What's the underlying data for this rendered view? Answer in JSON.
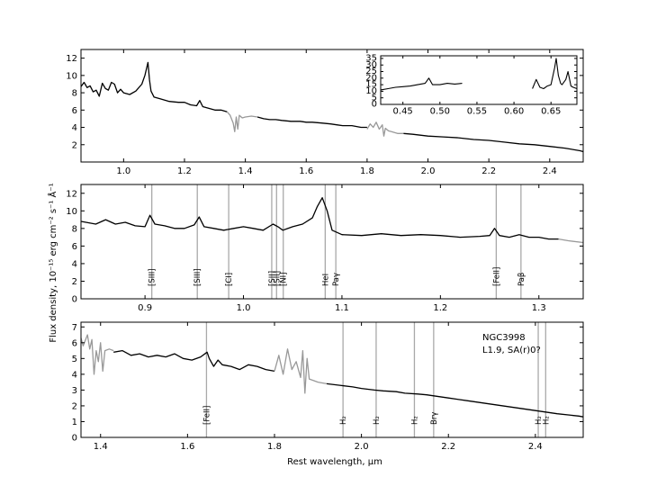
{
  "chart_data": [
    {
      "type": "line",
      "xlim": [
        0.86,
        2.51
      ],
      "ylim": [
        0,
        13
      ],
      "xticks": [
        1.0,
        1.2,
        1.4,
        1.6,
        1.8,
        2.0,
        2.2,
        2.4
      ],
      "yticks": [
        2,
        4,
        6,
        8,
        10,
        12
      ],
      "series": [
        {
          "color": "#000000",
          "x": [
            0.86,
            0.87,
            0.88,
            0.89,
            0.9,
            0.91,
            0.92,
            0.93,
            0.94,
            0.95,
            0.96,
            0.97,
            0.98,
            0.99,
            1.0,
            1.02,
            1.04,
            1.06,
            1.07,
            1.08,
            1.085,
            1.09,
            1.1,
            1.12,
            1.15,
            1.18,
            1.2,
            1.22,
            1.24,
            1.25,
            1.26,
            1.28,
            1.3,
            1.32,
            1.34
          ],
          "y": [
            8.7,
            9.2,
            8.6,
            8.8,
            8.1,
            8.3,
            7.6,
            9.1,
            8.5,
            8.3,
            9.2,
            9.0,
            8.0,
            8.4,
            8.0,
            7.8,
            8.2,
            9.0,
            10.0,
            11.5,
            9.5,
            8.2,
            7.5,
            7.3,
            7.0,
            6.9,
            6.9,
            6.6,
            6.5,
            7.1,
            6.4,
            6.2,
            6.0,
            6.0,
            5.8
          ]
        },
        {
          "color": "#999999",
          "x": [
            1.34,
            1.35,
            1.36,
            1.365,
            1.37,
            1.375,
            1.38,
            1.39,
            1.4,
            1.42,
            1.44
          ],
          "y": [
            5.8,
            5.4,
            4.5,
            3.5,
            5.2,
            3.8,
            5.4,
            5.1,
            5.2,
            5.3,
            5.2
          ]
        },
        {
          "color": "#000000",
          "x": [
            1.44,
            1.46,
            1.48,
            1.5,
            1.52,
            1.55,
            1.58,
            1.6,
            1.62,
            1.65,
            1.68,
            1.7,
            1.72,
            1.75,
            1.78,
            1.8
          ],
          "y": [
            5.2,
            5.0,
            4.9,
            4.9,
            4.8,
            4.7,
            4.7,
            4.6,
            4.6,
            4.5,
            4.4,
            4.3,
            4.2,
            4.2,
            4.0,
            4.0
          ]
        },
        {
          "color": "#999999",
          "x": [
            1.8,
            1.81,
            1.82,
            1.83,
            1.84,
            1.85,
            1.855,
            1.86,
            1.87,
            1.88,
            1.9,
            1.92
          ],
          "y": [
            3.8,
            4.4,
            4.0,
            4.6,
            3.8,
            4.3,
            3.0,
            3.9,
            3.6,
            3.5,
            3.3,
            3.3
          ]
        },
        {
          "color": "#000000",
          "x": [
            1.92,
            1.95,
            2.0,
            2.05,
            2.1,
            2.15,
            2.2,
            2.25,
            2.3,
            2.35,
            2.4,
            2.45,
            2.5,
            2.51
          ],
          "y": [
            3.3,
            3.2,
            3.0,
            2.9,
            2.8,
            2.6,
            2.5,
            2.3,
            2.1,
            2.0,
            1.8,
            1.6,
            1.3,
            1.2
          ]
        }
      ],
      "inset": {
        "xlim": [
          0.42,
          0.685
        ],
        "ylim": [
          0,
          37
        ],
        "xticks": [
          0.45,
          0.5,
          0.55,
          0.6,
          0.65
        ],
        "yticks": [
          0,
          5,
          10,
          15,
          20,
          25,
          30,
          35
        ],
        "series": [
          {
            "color": "#000000",
            "x": [
              0.42,
              0.43,
              0.44,
              0.45,
              0.46,
              0.47,
              0.48,
              0.485,
              0.49,
              0.5,
              0.51,
              0.52,
              0.53
            ],
            "y": [
              11,
              12,
              13,
              13.5,
              14,
              15,
              16,
              20,
              15,
              15,
              16,
              15.5,
              16
            ]
          },
          {
            "color": "#000000",
            "x": [
              0.625,
              0.63,
              0.635,
              0.64,
              0.645,
              0.65,
              0.655,
              0.657,
              0.66,
              0.663,
              0.665,
              0.67,
              0.673,
              0.677,
              0.68,
              0.685
            ],
            "y": [
              12,
              19,
              13,
              12,
              14,
              15,
              28,
              35,
              22,
              16,
              15,
              19,
              25,
              14,
              13,
              12
            ]
          }
        ]
      }
    },
    {
      "type": "line",
      "xlim": [
        0.835,
        1.345
      ],
      "ylim": [
        0,
        13
      ],
      "xticks": [
        0.9,
        1.0,
        1.1,
        1.2,
        1.3
      ],
      "yticks": [
        0,
        2,
        4,
        6,
        8,
        10,
        12
      ],
      "series": [
        {
          "color": "#000000",
          "x": [
            0.835,
            0.85,
            0.86,
            0.87,
            0.88,
            0.89,
            0.9,
            0.905,
            0.91,
            0.92,
            0.93,
            0.94,
            0.95,
            0.955,
            0.96,
            0.97,
            0.98,
            0.99,
            1.0,
            1.01,
            1.02,
            1.03,
            1.035,
            1.04,
            1.05,
            1.06,
            1.07,
            1.075,
            1.08,
            1.085,
            1.09,
            1.1,
            1.12,
            1.14,
            1.16,
            1.18,
            1.2,
            1.22,
            1.24,
            1.25,
            1.255,
            1.26,
            1.27,
            1.28,
            1.29,
            1.3,
            1.31,
            1.32
          ],
          "y": [
            8.8,
            8.5,
            9.0,
            8.5,
            8.7,
            8.3,
            8.2,
            9.5,
            8.5,
            8.3,
            8.0,
            8.0,
            8.4,
            9.3,
            8.2,
            8.0,
            7.8,
            8.0,
            8.2,
            8.0,
            7.8,
            8.5,
            8.2,
            7.8,
            8.2,
            8.5,
            9.2,
            10.5,
            11.5,
            10.0,
            7.8,
            7.3,
            7.2,
            7.4,
            7.2,
            7.3,
            7.2,
            7.0,
            7.1,
            7.2,
            8.0,
            7.2,
            7.0,
            7.3,
            7.0,
            7.0,
            6.8,
            6.8
          ]
        },
        {
          "color": "#999999",
          "x": [
            1.32,
            1.33,
            1.345
          ],
          "y": [
            6.8,
            6.6,
            6.4
          ]
        }
      ],
      "lines": [
        {
          "label": "[SIII]",
          "x": 0.9069
        },
        {
          "label": "[SIII]",
          "x": 0.9531
        },
        {
          "label": "[CI]",
          "x": 0.985
        },
        {
          "label": "[SII]",
          "x": 1.0287
        },
        {
          "label": "[SII]",
          "x": 1.0336
        },
        {
          "label": "[NI]",
          "x": 1.0404
        },
        {
          "label": "HeI",
          "x": 1.083
        },
        {
          "label": "Paγ",
          "x": 1.0938
        },
        {
          "label": "[FeII]",
          "x": 1.2567
        },
        {
          "label": "Paβ",
          "x": 1.2818
        }
      ]
    },
    {
      "type": "line",
      "xlim": [
        1.355,
        2.51
      ],
      "ylim": [
        0,
        7.3
      ],
      "xticks": [
        1.4,
        1.6,
        1.8,
        2.0,
        2.2,
        2.4
      ],
      "yticks": [
        0,
        1,
        2,
        3,
        4,
        5,
        6,
        7
      ],
      "series": [
        {
          "color": "#999999",
          "x": [
            1.355,
            1.36,
            1.37,
            1.375,
            1.38,
            1.385,
            1.39,
            1.395,
            1.4,
            1.405,
            1.41,
            1.42,
            1.43
          ],
          "y": [
            6.3,
            5.8,
            6.5,
            5.6,
            6.2,
            4.0,
            5.5,
            4.8,
            6.0,
            4.2,
            5.5,
            5.6,
            5.5
          ]
        },
        {
          "color": "#000000",
          "x": [
            1.43,
            1.45,
            1.47,
            1.49,
            1.51,
            1.53,
            1.55,
            1.57,
            1.59,
            1.61,
            1.63,
            1.645,
            1.65,
            1.66,
            1.67,
            1.68,
            1.7,
            1.72,
            1.74,
            1.76,
            1.78,
            1.8
          ],
          "y": [
            5.4,
            5.5,
            5.2,
            5.3,
            5.1,
            5.2,
            5.1,
            5.3,
            5.0,
            4.9,
            5.1,
            5.4,
            5.0,
            4.5,
            4.9,
            4.6,
            4.5,
            4.3,
            4.6,
            4.5,
            4.3,
            4.2
          ]
        },
        {
          "color": "#999999",
          "x": [
            1.8,
            1.81,
            1.82,
            1.83,
            1.84,
            1.85,
            1.86,
            1.865,
            1.87,
            1.875,
            1.88,
            1.89,
            1.9,
            1.92
          ],
          "y": [
            4.2,
            5.2,
            4.0,
            5.6,
            4.3,
            4.8,
            3.8,
            5.5,
            2.8,
            5.0,
            3.7,
            3.6,
            3.5,
            3.4
          ]
        },
        {
          "color": "#000000",
          "x": [
            1.92,
            1.95,
            1.98,
            2.0,
            2.03,
            2.05,
            2.08,
            2.1,
            2.13,
            2.15,
            2.2,
            2.25,
            2.3,
            2.35,
            2.4,
            2.45,
            2.5,
            2.51
          ],
          "y": [
            3.4,
            3.3,
            3.2,
            3.1,
            3.0,
            2.95,
            2.9,
            2.8,
            2.75,
            2.7,
            2.5,
            2.3,
            2.1,
            1.9,
            1.7,
            1.5,
            1.35,
            1.3
          ]
        }
      ],
      "lines": [
        {
          "label": "[FeII]",
          "x": 1.6436
        },
        {
          "label": "H₂",
          "x": 1.9576
        },
        {
          "label": "H₂",
          "x": 2.0338
        },
        {
          "label": "H₂",
          "x": 2.1218
        },
        {
          "label": "Brγ",
          "x": 2.1661
        },
        {
          "label": "H₂",
          "x": 2.4066
        },
        {
          "label": "H₂",
          "x": 2.4237
        }
      ],
      "object_name": "NGC3998",
      "object_class": "L1.9,  SA(r)0?"
    }
  ],
  "xlabel": "Rest wavelength, μm",
  "ylabel": "Flux density, 10⁻¹⁵ erg cm⁻² s⁻¹ Å⁻¹"
}
